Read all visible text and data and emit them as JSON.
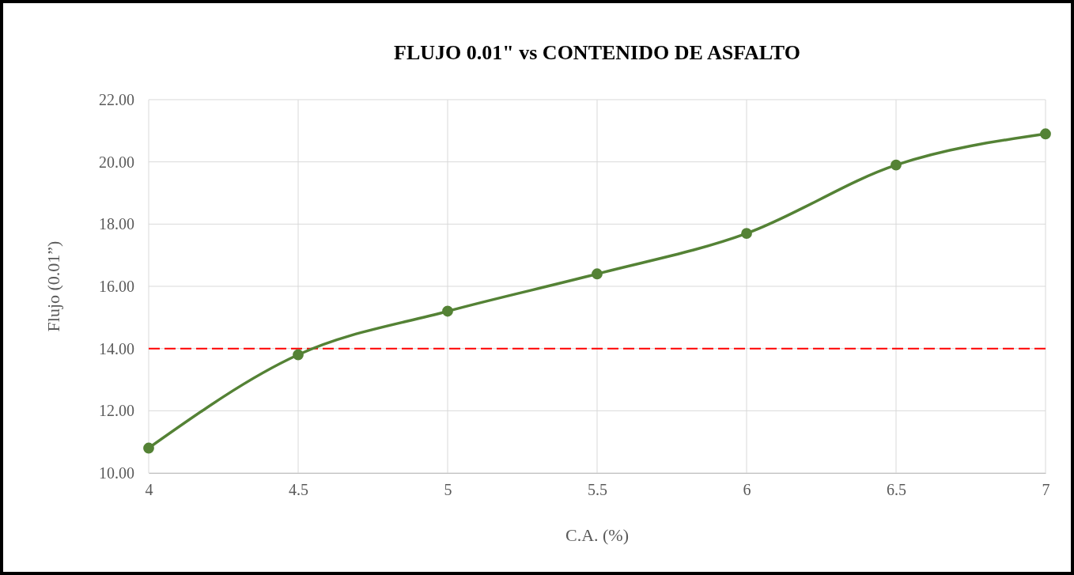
{
  "chart_data": {
    "type": "line",
    "title": "FLUJO 0.01\" vs CONTENIDO DE ASFALTO",
    "xlabel": "C.A. (%)",
    "ylabel": "Flujo (0.01”)",
    "x": [
      4,
      4.5,
      5,
      5.5,
      6,
      6.5,
      7
    ],
    "series": [
      {
        "color": "#548235",
        "values": [
          10.8,
          13.8,
          15.2,
          16.4,
          17.7,
          19.9,
          20.9
        ]
      }
    ],
    "xlim": [
      4,
      7
    ],
    "xticks": [
      4,
      4.5,
      5,
      5.5,
      6,
      6.5,
      7
    ],
    "ylim": [
      10,
      22
    ],
    "yticks": [
      {
        "value": 10,
        "label": "10.00"
      },
      {
        "value": 12,
        "label": "12.00"
      },
      {
        "value": 14,
        "label": "14.00"
      },
      {
        "value": 16,
        "label": "16.00"
      },
      {
        "value": 18,
        "label": "18.00"
      },
      {
        "value": 20,
        "label": "20.00"
      },
      {
        "value": 22,
        "label": "22.00"
      }
    ],
    "ref_lines": [
      {
        "axis": "y",
        "value": 14,
        "color": "#ff0000",
        "line_style": "dashed"
      }
    ],
    "grid": true,
    "marker": "circle",
    "line_style": "solid"
  }
}
